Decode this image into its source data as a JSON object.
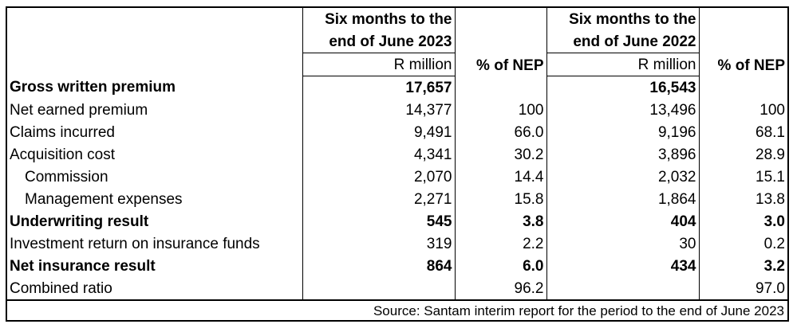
{
  "header": {
    "period_2023": [
      "Six months to the",
      "end of June 2023"
    ],
    "period_2022": [
      "Six months to the",
      "end of June 2022"
    ],
    "unit": "R million",
    "pct": "% of NEP"
  },
  "rows": [
    {
      "label": "Gross written premium",
      "bold": true,
      "v2023": "17,657",
      "p2023": "",
      "v2022": "16,543",
      "p2022": ""
    },
    {
      "label": "Net earned premium",
      "bold": false,
      "v2023": "14,377",
      "p2023": "100",
      "v2022": "13,496",
      "p2022": "100"
    },
    {
      "label": "Claims incurred",
      "bold": false,
      "v2023": "9,491",
      "p2023": "66.0",
      "v2022": "9,196",
      "p2022": "68.1"
    },
    {
      "label": "Acquisition cost",
      "bold": false,
      "v2023": "4,341",
      "p2023": "30.2",
      "v2022": "3,896",
      "p2022": "28.9"
    },
    {
      "label": "Commission",
      "bold": false,
      "indent": true,
      "v2023": "2,070",
      "p2023": "14.4",
      "v2022": "2,032",
      "p2022": "15.1"
    },
    {
      "label": "Management expenses",
      "bold": false,
      "indent": true,
      "v2023": "2,271",
      "p2023": "15.8",
      "v2022": "1,864",
      "p2022": "13.8"
    },
    {
      "label": "Underwriting result",
      "bold": true,
      "v2023": "545",
      "p2023": "3.8",
      "v2022": "404",
      "p2022": "3.0"
    },
    {
      "label": "Investment return on insurance funds",
      "bold": false,
      "v2023": "319",
      "p2023": "2.2",
      "v2022": "30",
      "p2022": "0.2"
    },
    {
      "label": "Net insurance result",
      "bold": true,
      "v2023": "864",
      "p2023": "6.0",
      "v2022": "434",
      "p2022": "3.2"
    },
    {
      "label": "Combined ratio",
      "bold": false,
      "v2023": "",
      "p2023": "96.2",
      "v2022": "",
      "p2022": "97.0"
    }
  ],
  "source": "Source: Santam interim report for the period to the end of June 2023"
}
